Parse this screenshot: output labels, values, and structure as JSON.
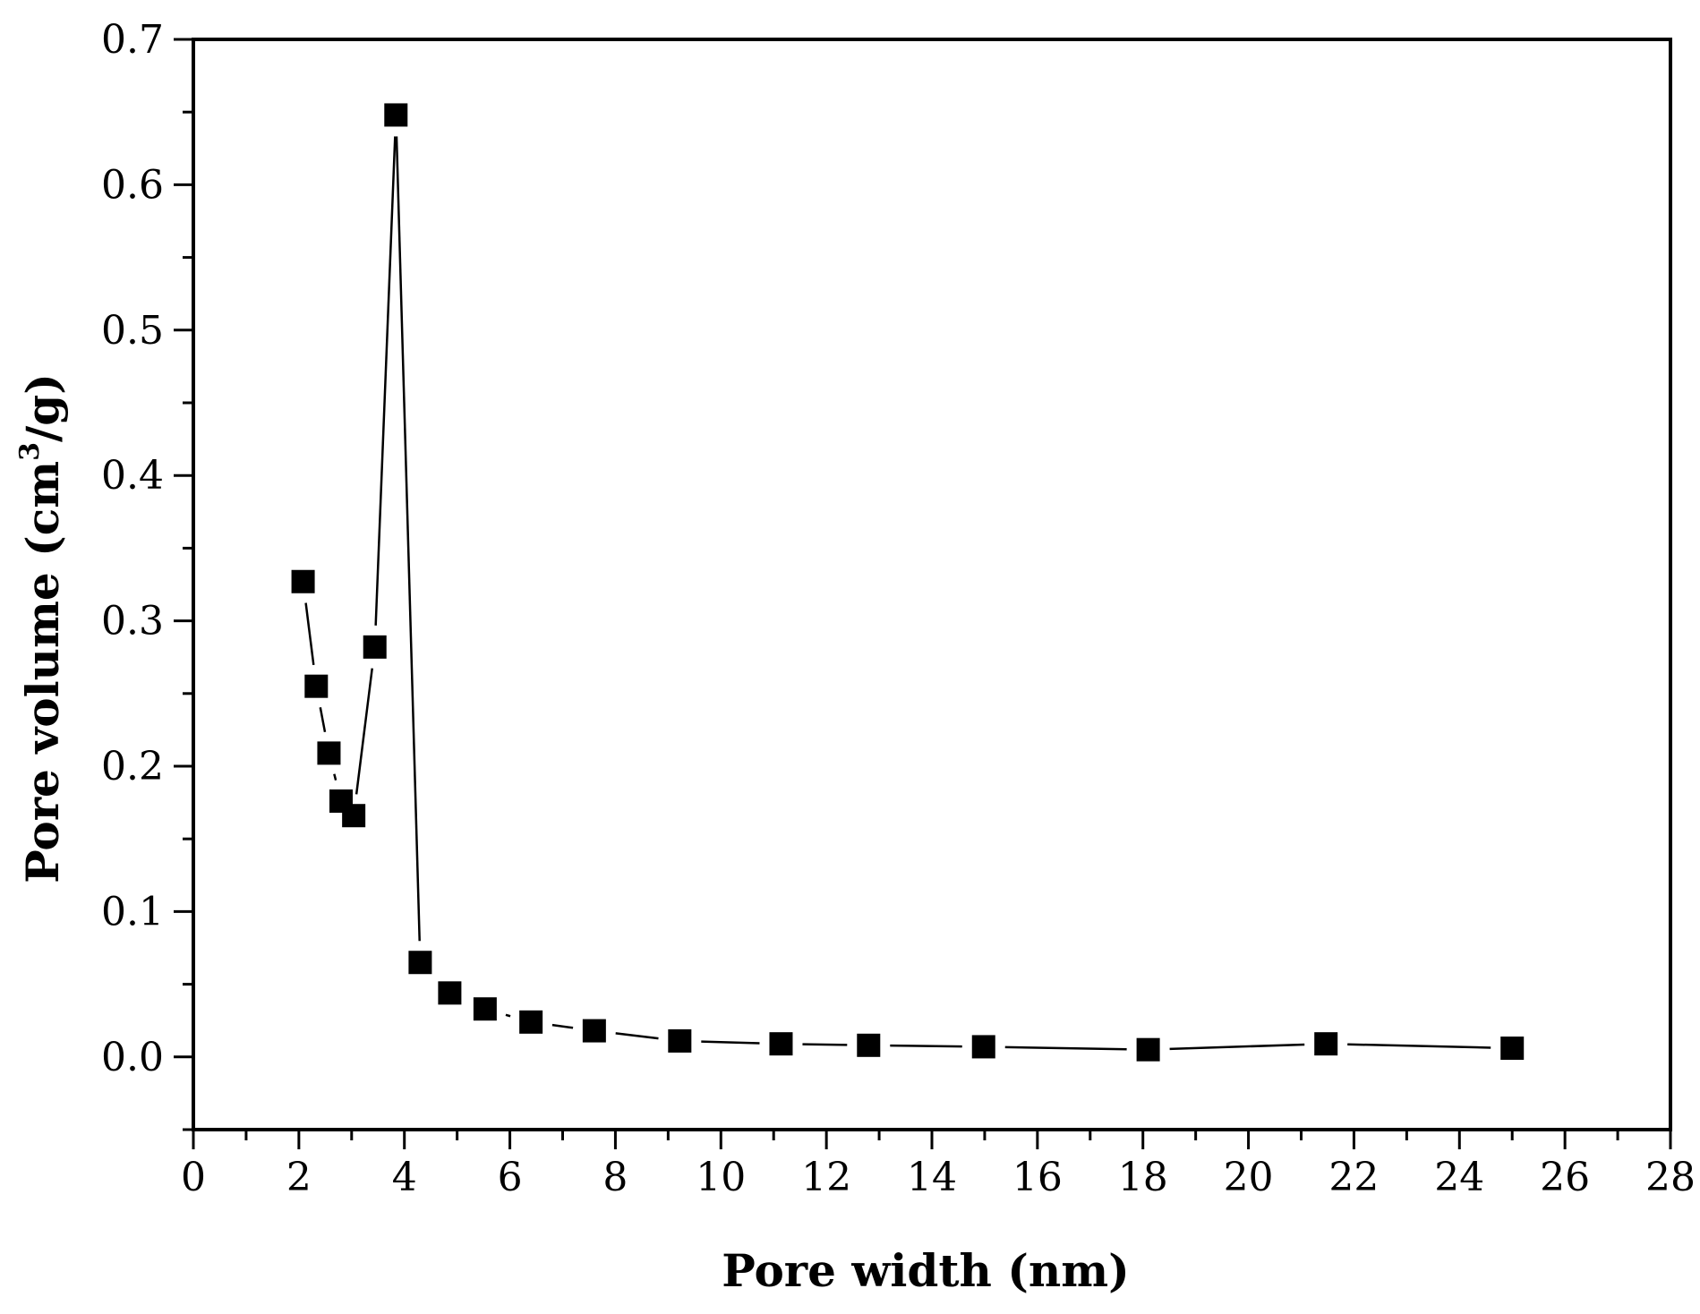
{
  "chart_data": {
    "type": "scatter",
    "title": "",
    "xlabel": "Pore width (nm)",
    "ylabel": {
      "prefix": "Pore volume (cm",
      "superscript": "3",
      "suffix": "/g)"
    },
    "xlim": [
      0,
      28
    ],
    "ylim": [
      -0.05,
      0.7
    ],
    "xticks": [
      "0",
      "2",
      "4",
      "6",
      "8",
      "10",
      "12",
      "14",
      "16",
      "18",
      "20",
      "22",
      "24",
      "26",
      "28"
    ],
    "yticks": [
      "0.0",
      "0.1",
      "0.2",
      "0.3",
      "0.4",
      "0.5",
      "0.6",
      "0.7"
    ],
    "marker": "square",
    "line": true,
    "color": "#000000",
    "grid": false,
    "legend": "none",
    "series": [
      {
        "x": [
          2.08,
          2.33,
          2.57,
          2.8,
          3.04,
          3.44,
          3.84,
          4.3,
          4.86,
          5.53,
          6.4,
          7.6,
          9.22,
          11.14,
          12.8,
          14.98,
          18.1,
          21.47,
          25.0
        ],
        "y": [
          0.327,
          0.255,
          0.209,
          0.176,
          0.166,
          0.282,
          0.648,
          0.065,
          0.044,
          0.033,
          0.024,
          0.018,
          0.011,
          0.009,
          0.008,
          0.007,
          0.005,
          0.009,
          0.006
        ]
      }
    ]
  }
}
